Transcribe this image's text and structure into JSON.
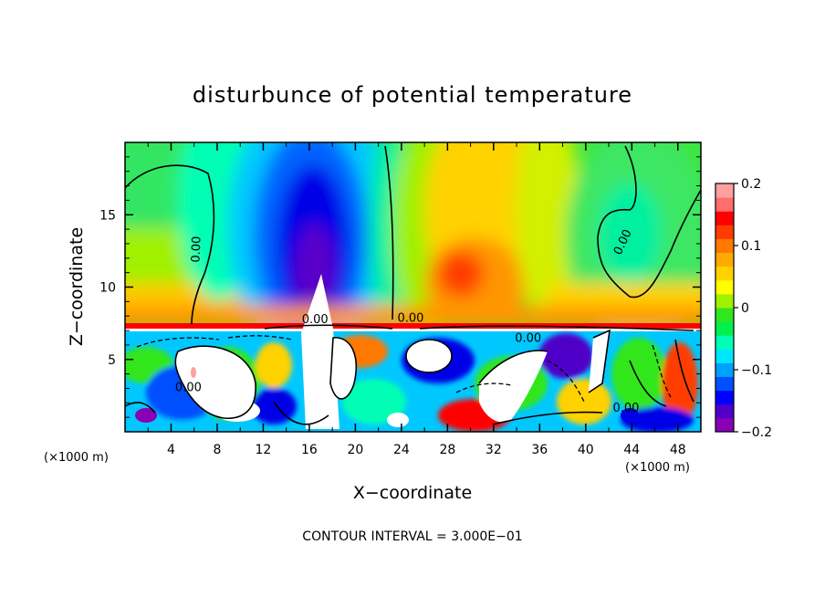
{
  "chart_data": {
    "type": "heatmap",
    "title": "disturbunce of potential temperature",
    "xlabel": "X−coordinate",
    "ylabel": "Z−coordinate",
    "x_unit": "(×1000 m)",
    "z_unit": "(×1000 m)",
    "xlim": [
      0,
      50
    ],
    "ylim": [
      0,
      20
    ],
    "x_ticks": [
      4,
      8,
      12,
      16,
      20,
      24,
      28,
      32,
      36,
      40,
      44,
      48
    ],
    "x_tick_labels": [
      "4",
      "8",
      "12",
      "16",
      "20",
      "24",
      "28",
      "32",
      "36",
      "40",
      "44",
      "48"
    ],
    "y_ticks": [
      5,
      10,
      15
    ],
    "y_tick_labels": [
      "5",
      "10",
      "15"
    ],
    "colorbar": {
      "range": [
        -0.2,
        0.2
      ],
      "ticks": [
        -0.2,
        -0.1,
        0,
        0.1,
        0.2
      ],
      "tick_labels": [
        "−0.2",
        "−0.1",
        "0",
        "0.1",
        "0.2"
      ],
      "colors": [
        "#8a00b4",
        "#5000c8",
        "#0000ff",
        "#0050ff",
        "#00a0ff",
        "#00e6ff",
        "#00ffb4",
        "#00f050",
        "#32e61e",
        "#a0f000",
        "#ffff00",
        "#ffd200",
        "#ffaa00",
        "#ff7800",
        "#ff3c00",
        "#ff0000",
        "#ff6e6e",
        "#ffa0a0"
      ]
    },
    "features": [
      {
        "x": 16,
        "z": 13.5,
        "value": -0.2
      },
      {
        "x": 16,
        "z": 17,
        "value": -0.15
      },
      {
        "x": 30,
        "z": 11.5,
        "value": 0.1
      },
      {
        "x": 30,
        "z": 16,
        "value": 0.08
      },
      {
        "x": 6,
        "z": 13,
        "value": 0.03
      },
      {
        "x": 42,
        "z": 15,
        "value": 0.0
      },
      {
        "x": 8,
        "z": 4.5,
        "value": -0.1
      },
      {
        "x": 34,
        "z": 4,
        "value": -0.1
      },
      {
        "x": 44,
        "z": 3,
        "value": 0.02
      }
    ],
    "contour_labels": [
      {
        "text": "0.00",
        "x": 6.5,
        "z": 12.6
      },
      {
        "text": "0.00",
        "x": 43.5,
        "z": 13
      },
      {
        "text": "0.00",
        "x": 16.5,
        "z": 7.5
      },
      {
        "text": "0.00",
        "x": 24.8,
        "z": 7.6
      },
      {
        "text": "0.00",
        "x": 35,
        "z": 6.2
      },
      {
        "text": "0.00",
        "x": 5.5,
        "z": 2.8
      },
      {
        "text": "0.00",
        "x": 43.5,
        "z": 1.4
      }
    ],
    "footer": "CONTOUR INTERVAL = 3.000E−01"
  }
}
